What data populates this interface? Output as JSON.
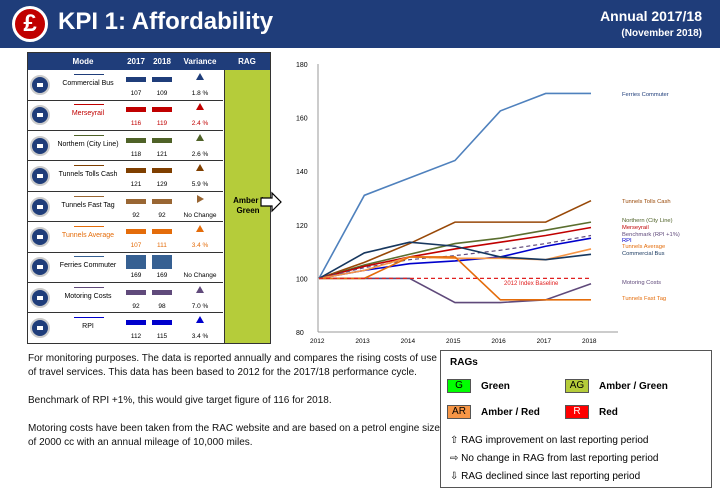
{
  "header": {
    "logo": "£",
    "title": "KPI 1: Affordability",
    "annual": "Annual  2017/18",
    "period": "(November 2018)"
  },
  "table": {
    "headers": {
      "mode": "Mode",
      "y2017": "2017",
      "y2018": "2018",
      "variance": "Variance",
      "rag": "RAG"
    },
    "rag_value": "Amber / Green",
    "rows": [
      {
        "mode": "Commercial Bus",
        "v2017": "107",
        "v2018": "109",
        "variance": "1.8 %",
        "color": "#1f3d7a",
        "dir": "up",
        "dircolor": "#1f3d7a"
      },
      {
        "mode": "Merseyrail",
        "v2017": "116",
        "v2018": "119",
        "variance": "2.4 %",
        "color": "#c00000",
        "dir": "up",
        "dircolor": "#c00000",
        "red": true
      },
      {
        "mode": "Northern (City Line)",
        "v2017": "118",
        "v2018": "121",
        "variance": "2.6 %",
        "color": "#4f6228",
        "dir": "up",
        "dircolor": "#4f6228"
      },
      {
        "mode": "Tunnels Tolls Cash",
        "v2017": "121",
        "v2018": "129",
        "variance": "5.9 %",
        "color": "#7f3f00",
        "dir": "up",
        "dircolor": "#7f3f00"
      },
      {
        "mode": "Tunnels Fast Tag",
        "v2017": "92",
        "v2018": "92",
        "variance": "No Change",
        "color": "#996633",
        "dir": "right",
        "dircolor": "#996633"
      },
      {
        "mode": "Tunnels Average",
        "v2017": "107",
        "v2018": "111",
        "variance": "3.4 %",
        "color": "#e46c0a",
        "dir": "up",
        "dircolor": "#e46c0a",
        "orange": true
      },
      {
        "mode": "Ferries Commuter",
        "v2017": "169",
        "v2018": "169",
        "variance": "No Change",
        "color": "#366092",
        "dir": "none",
        "dircolor": "#366092"
      },
      {
        "mode": "Motoring Costs",
        "v2017": "92",
        "v2018": "98",
        "variance": "7.0 %",
        "color": "#604a7b",
        "dir": "up",
        "dircolor": "#604a7b"
      },
      {
        "mode": "RPI",
        "v2017": "112",
        "v2018": "115",
        "variance": "3.4 %",
        "color": "#0000cc",
        "dir": "up",
        "dircolor": "#0000cc"
      }
    ]
  },
  "chart_data": {
    "type": "line",
    "x": [
      2012,
      2013,
      2014,
      2015,
      2016,
      2017,
      2018
    ],
    "ylim": [
      80,
      180
    ],
    "yticks": [
      80,
      100,
      120,
      140,
      160,
      180
    ],
    "series": [
      {
        "name": "Ferries Commuter",
        "color": "#4f81bd",
        "dash": false,
        "values": [
          100,
          131,
          137.5,
          144,
          162.5,
          169,
          169
        ]
      },
      {
        "name": "Tunnels Tolls Cash",
        "color": "#984807",
        "dash": false,
        "values": [
          100,
          106,
          113,
          121,
          121,
          121,
          129
        ]
      },
      {
        "name": "Northern (City Line)",
        "color": "#5a6e2e",
        "dash": false,
        "values": [
          100,
          105,
          109,
          113,
          115,
          118,
          121
        ]
      },
      {
        "name": "Merseyrail",
        "color": "#c00000",
        "dash": false,
        "values": [
          100,
          104.5,
          108,
          111,
          113.5,
          116,
          119
        ]
      },
      {
        "name": "Benchmark (RPI +1%)",
        "color": "#604a7b",
        "dash": true,
        "values": [
          100,
          104,
          107,
          108.5,
          110.5,
          113,
          116
        ]
      },
      {
        "name": "RPI",
        "color": "#0000cc",
        "dash": false,
        "values": [
          100,
          103,
          105.5,
          106.5,
          108,
          112,
          115
        ]
      },
      {
        "name": "Tunnels Average",
        "color": "#f79646",
        "dash": false,
        "values": [
          100,
          103,
          108,
          107.5,
          107.5,
          107,
          111
        ]
      },
      {
        "name": "Commercial Bus",
        "color": "#17375e",
        "dash": false,
        "values": [
          100,
          109.5,
          113.5,
          112,
          108,
          107,
          109
        ]
      },
      {
        "name": "Motoring Costs",
        "color": "#5f497a",
        "dash": false,
        "values": [
          100,
          100,
          100,
          91,
          91,
          92,
          98
        ]
      },
      {
        "name": "Tunnels Fast Tag",
        "color": "#e46c0a",
        "dash": false,
        "values": [
          100,
          100,
          108,
          108,
          92,
          92,
          92
        ]
      },
      {
        "name": "2012 Index Baseline",
        "color": "#e02020",
        "dash": true,
        "values": [
          100,
          100,
          100,
          100,
          100,
          100,
          100
        ]
      }
    ],
    "labels": {
      "ferries": "Ferries Commuter",
      "tolls": "Tunnels Tolls Cash",
      "northern": "Northern (City Line)",
      "merseyrail": "Merseyrail",
      "benchmark": "Benchmark (RPI +1%)",
      "rpi": "RPI",
      "average": "Tunnels Average",
      "bus": "Commercial Bus",
      "motoring": "Motoring Costs",
      "fasttag": "Tunnels Fast Tag",
      "baseline": "2012 Index Baseline"
    }
  },
  "notes": {
    "p1": "For monitoring purposes. The data is reported annually and compares the rising costs of use of travel services. This data has been based to 2012 for the 2017/18 performance cycle.",
    "p2": "Benchmark of RPI +1%, this would give target figure of 116 for 2018.",
    "p3": "Motoring costs have been taken from the RAC website and are based on a petrol engine size of 2000 cc with an annual mileage of 10,000 miles."
  },
  "legend": {
    "title": "RAGs",
    "g": "G",
    "g_label": "Green",
    "g_color": "#00ff00",
    "ag": "AG",
    "ag_label": "Amber / Green",
    "ag_color": "#b5cc3a",
    "ar": "AR",
    "ar_label": "Amber / Red",
    "ar_color": "#f79646",
    "r": "R",
    "r_label": "Red",
    "r_color": "#ff0000",
    "k1": "⇧ RAG improvement on last reporting period",
    "k2": "⇨ No change in RAG from last reporting period",
    "k3": "⇩  RAG declined since last reporting period"
  }
}
